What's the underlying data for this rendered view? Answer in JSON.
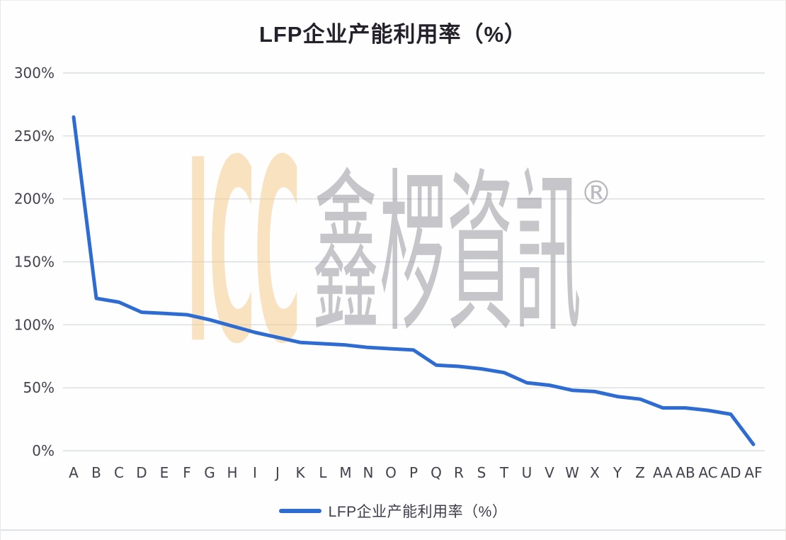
{
  "frame": {
    "title": "LFP企业产能利用率（%）"
  },
  "watermark": {
    "icc": "ICC",
    "cjk": "鑫椤資訊",
    "registered": "®"
  },
  "legend": {
    "label": "LFP企业产能利用率（%）"
  },
  "colors": {
    "line": "#2f6cd1",
    "gridline": "#d9dde2",
    "axis_text": "#45404e",
    "title_text": "#24212b",
    "watermark_orange": "#f4cb8c",
    "watermark_gray": "#8a8a92"
  },
  "chart_data": {
    "type": "line",
    "title": "LFP企业产能利用率（%）",
    "series_name": "LFP企业产能利用率（%）",
    "categories": [
      "A",
      "B",
      "C",
      "D",
      "E",
      "F",
      "G",
      "H",
      "I",
      "J",
      "K",
      "L",
      "M",
      "N",
      "O",
      "P",
      "Q",
      "R",
      "S",
      "T",
      "U",
      "V",
      "W",
      "X",
      "Y",
      "Z",
      "AA",
      "AB",
      "AC",
      "AD",
      "AF"
    ],
    "values": [
      265,
      121,
      118,
      110,
      109,
      108,
      104,
      99,
      94,
      90,
      86,
      85,
      84,
      82,
      81,
      80,
      68,
      67,
      65,
      62,
      54,
      52,
      48,
      47,
      43,
      41,
      34,
      34,
      32,
      29,
      5
    ],
    "xlabel": "",
    "ylabel": "",
    "ylim": [
      0,
      300
    ],
    "ytick_step": 50,
    "ytick_labels": [
      "0%",
      "50%",
      "100%",
      "150%",
      "200%",
      "250%",
      "300%"
    ],
    "grid": true,
    "legend_position": "bottom",
    "line_color": "#2f6cd1"
  }
}
